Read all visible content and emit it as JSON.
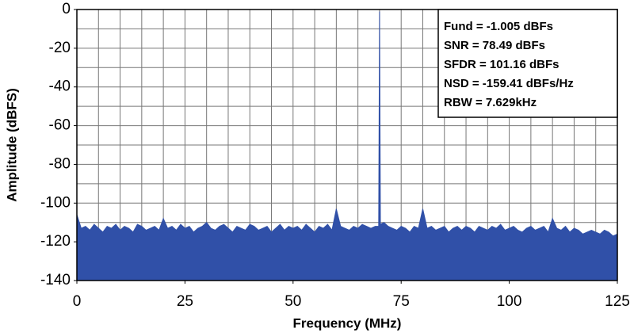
{
  "chart_data": {
    "type": "area",
    "xlabel": "Frequency (MHz)",
    "ylabel": "Amplitude (dBFS)",
    "xlim": [
      0,
      125
    ],
    "ylim": [
      -140,
      0
    ],
    "xticks": [
      0,
      25,
      50,
      75,
      100,
      125
    ],
    "yticks": [
      -140,
      -120,
      -100,
      -80,
      -60,
      -40,
      -20,
      0
    ],
    "xgrid": [
      5,
      10,
      15,
      20,
      25,
      30,
      35,
      40,
      45,
      50,
      55,
      60,
      65,
      70,
      75,
      80,
      85,
      90,
      95,
      100,
      105,
      110,
      115,
      120
    ],
    "ygrid": [
      -130,
      -120,
      -110,
      -100,
      -90,
      -80,
      -70,
      -60,
      -50,
      -40,
      -30,
      -20,
      -10
    ],
    "grid": true,
    "annotations": [
      "Fund = -1.005 dBFs",
      "SNR = 78.49 dBFs",
      "SFDR = 101.16 dBFs",
      "NSD = -159.41 dBFs/Hz",
      "RBW = 7.629kHz"
    ],
    "series": [
      {
        "color": "#3050a8",
        "x": [
          0,
          1,
          2,
          3,
          4,
          5,
          6,
          7,
          8,
          9,
          10,
          11,
          12,
          13,
          14,
          15,
          16,
          17,
          18,
          19,
          20,
          21,
          22,
          23,
          24,
          25,
          26,
          27,
          28,
          29,
          30,
          31,
          32,
          33,
          34,
          35,
          36,
          37,
          38,
          39,
          40,
          41,
          42,
          43,
          44,
          45,
          46,
          47,
          48,
          49,
          50,
          51,
          52,
          53,
          54,
          55,
          56,
          57,
          58,
          59,
          60,
          61,
          62,
          63,
          64,
          65,
          66,
          67,
          68,
          69,
          69.8,
          70,
          70.2,
          71,
          72,
          73,
          74,
          75,
          76,
          77,
          78,
          79,
          80,
          81,
          82,
          83,
          84,
          85,
          86,
          87,
          88,
          89,
          90,
          91,
          92,
          93,
          94,
          95,
          96,
          97,
          98,
          99,
          100,
          101,
          102,
          103,
          104,
          105,
          106,
          107,
          108,
          109,
          110,
          111,
          112,
          113,
          114,
          115,
          116,
          117,
          118,
          119,
          120,
          121,
          122,
          123,
          124,
          125
        ],
        "values": [
          -106,
          -113,
          -112,
          -114,
          -111,
          -113,
          -115,
          -112,
          -113,
          -111,
          -114,
          -112,
          -113,
          -115,
          -111,
          -112,
          -114,
          -113,
          -112,
          -114,
          -108,
          -113,
          -112,
          -114,
          -111,
          -113,
          -112,
          -115,
          -113,
          -112,
          -110,
          -113,
          -114,
          -112,
          -111,
          -113,
          -115,
          -112,
          -113,
          -114,
          -111,
          -112,
          -114,
          -113,
          -112,
          -115,
          -113,
          -111,
          -114,
          -112,
          -113,
          -112,
          -114,
          -111,
          -113,
          -115,
          -112,
          -113,
          -111,
          -114,
          -103,
          -112,
          -113,
          -114,
          -112,
          -113,
          -111,
          -112,
          -113,
          -112,
          -112,
          -1,
          -111,
          -110,
          -112,
          -113,
          -114,
          -112,
          -113,
          -115,
          -112,
          -113,
          -103,
          -113,
          -112,
          -114,
          -113,
          -112,
          -115,
          -113,
          -112,
          -114,
          -112,
          -113,
          -115,
          -112,
          -113,
          -114,
          -112,
          -113,
          -111,
          -114,
          -113,
          -112,
          -114,
          -115,
          -113,
          -112,
          -114,
          -113,
          -112,
          -115,
          -108,
          -113,
          -114,
          -112,
          -115,
          -113,
          -114,
          -116,
          -115,
          -114,
          -115,
          -116,
          -114,
          -115,
          -117,
          -116
        ]
      }
    ]
  }
}
